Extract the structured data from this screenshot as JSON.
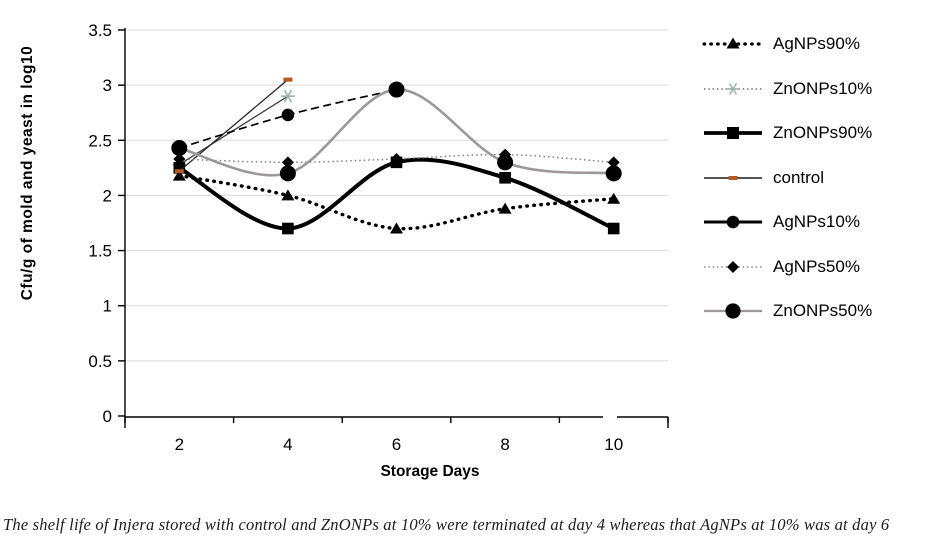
{
  "figure": {
    "caption": "The shelf life of Injera stored with control and ZnONPs at 10% were terminated at day 4 whereas that AgNPs at 10% was at day 6"
  },
  "chart_data": {
    "type": "line",
    "title": "",
    "xlabel": "Storage Days",
    "ylabel": "Cfu/g of mold and yeast in log10",
    "x": [
      2,
      4,
      6,
      8,
      10
    ],
    "ylim": [
      0,
      3.5
    ],
    "yticks": [
      "0",
      "0.5",
      "1",
      "1.5",
      "2",
      "2.5",
      "3",
      "3.5"
    ],
    "grid": true,
    "grid_color": "#d9d9d9",
    "axis_color": "#000000",
    "legend_position": "right",
    "series": [
      {
        "name": "AgNPs90%",
        "x": [
          2,
          4,
          6,
          8,
          10
        ],
        "values": [
          2.18,
          2.0,
          1.7,
          1.88,
          1.97
        ],
        "line": "dotted",
        "color": "#000000",
        "width": 3.4,
        "marker": "triangle",
        "marker_color": "#000000",
        "smooth": true
      },
      {
        "name": "ZnONPs10%",
        "x": [
          2,
          4
        ],
        "values": [
          2.28,
          2.9
        ],
        "line": "solid",
        "color": "#3d3d3d",
        "width": 1.3,
        "marker": "asterisk",
        "marker_color": "#9db7a8",
        "smooth": false
      },
      {
        "name": "ZnONPs90%",
        "x": [
          2,
          4,
          6,
          8,
          10
        ],
        "values": [
          2.25,
          1.7,
          2.3,
          2.16,
          1.7
        ],
        "line": "solid",
        "color": "#000000",
        "width": 4,
        "marker": "square",
        "marker_color": "#000000",
        "smooth": true
      },
      {
        "name": "control",
        "x": [
          2,
          4
        ],
        "values": [
          2.22,
          3.05
        ],
        "line": "solid",
        "color": "#262626",
        "width": 1.3,
        "marker": "dash",
        "marker_color": "#b45a1f",
        "smooth": false
      },
      {
        "name": "AgNPs10%",
        "x": [
          2,
          4,
          6
        ],
        "values": [
          2.43,
          2.73,
          2.96
        ],
        "line": "dashed",
        "color": "#000000",
        "width": 1.7,
        "marker": "circle",
        "marker_color": "#000000",
        "smooth": true
      },
      {
        "name": "AgNPs50%",
        "x": [
          2,
          4,
          6,
          8,
          10
        ],
        "values": [
          2.33,
          2.3,
          2.33,
          2.37,
          2.3
        ],
        "line": "fine-dotted",
        "color": "#808080",
        "width": 1.5,
        "marker": "diamond",
        "marker_color": "#000000",
        "smooth": true
      },
      {
        "name": "ZnONPs50%",
        "x": [
          2,
          4,
          6,
          8,
          10
        ],
        "values": [
          2.43,
          2.2,
          2.96,
          2.3,
          2.2
        ],
        "line": "solid",
        "color": "#9b9897",
        "width": 2.6,
        "marker": "circle-large",
        "marker_color": "#000000",
        "smooth": true
      }
    ]
  }
}
